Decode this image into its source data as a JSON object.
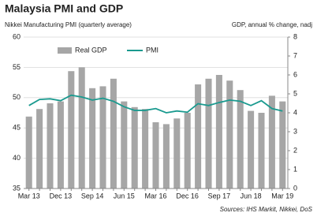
{
  "chart_data": {
    "type": "bar-line",
    "title": "Malaysia PMI and GDP",
    "y_label": "Nikkei Manufacturing PMI (quarterly average)",
    "y2_label": "GDP, annual % change, nadj",
    "source": "Sources: IHS Markit, Nikkei, DoS",
    "categories": [
      "Mar 13",
      null,
      null,
      "Dec 13",
      null,
      null,
      "Sep 14",
      null,
      null,
      "Jun 15",
      null,
      null,
      "Mar 16",
      null,
      null,
      "Dec 16",
      null,
      null,
      "Sep 17",
      null,
      null,
      "Jun 18",
      null,
      null,
      "Mar 19"
    ],
    "series": [
      {
        "name": "Real GDP",
        "type": "bar",
        "axis": "y2",
        "color": "#a6a6a6",
        "values": [
          3.8,
          4.2,
          4.5,
          4.6,
          6.2,
          6.4,
          5.3,
          5.4,
          5.8,
          4.6,
          4.3,
          4.2,
          3.5,
          3.4,
          3.7,
          4.0,
          5.5,
          5.8,
          6.0,
          5.7,
          5.2,
          4.1,
          4.0,
          4.9,
          4.6
        ]
      },
      {
        "name": "PMI",
        "type": "line",
        "color": "#1a9a8f",
        "values": [
          48.7,
          49.7,
          49.8,
          49.5,
          50.4,
          50.1,
          49.6,
          49.9,
          49.4,
          48.5,
          47.9,
          47.9,
          48.2,
          47.5,
          47.8,
          47.6,
          49.0,
          48.7,
          49.2,
          49.6,
          49.4,
          48.7,
          49.5,
          48.2,
          47.8
        ]
      }
    ],
    "ylim": [
      35,
      60
    ],
    "yticks": [
      35,
      40,
      45,
      50,
      55,
      60
    ],
    "y2lim": [
      0,
      8
    ],
    "y2ticks": [
      0,
      1,
      2,
      3,
      4,
      5,
      6,
      7,
      8
    ],
    "grid": true,
    "legend": "top"
  }
}
